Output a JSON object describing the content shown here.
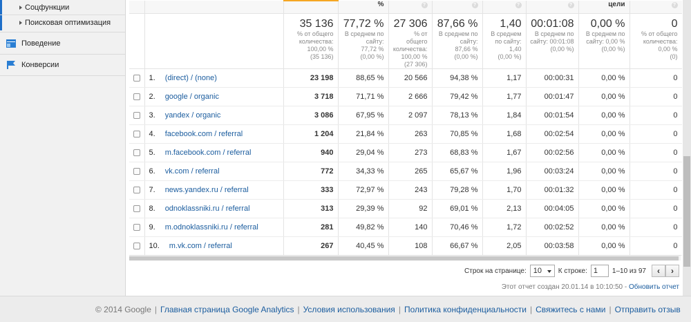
{
  "sidebar": {
    "sub_items": [
      "Соцфункции",
      "Поисковая оптимизация"
    ],
    "nav_items": [
      {
        "label": "Поведение",
        "icon": "behavior-icon"
      },
      {
        "label": "Конверсии",
        "icon": "flag-icon"
      }
    ]
  },
  "table": {
    "header_labels": [
      "",
      "",
      "",
      "%",
      "",
      "",
      "",
      "",
      "цели",
      ""
    ],
    "summary": [
      {
        "value": "35 136",
        "sub1": "% от общего",
        "sub2": "количества:",
        "sub3": "100,00 %",
        "sub4": "(35 136)"
      },
      {
        "value": "77,72 %",
        "sub1": "В среднем по",
        "sub2": "сайту:",
        "sub3": "77,72 %",
        "sub4": "(0,00 %)"
      },
      {
        "value": "27 306",
        "sub1": "% от общего",
        "sub2": "количества:",
        "sub3": "100,00 %",
        "sub4": "(27 306)"
      },
      {
        "value": "87,66 %",
        "sub1": "В среднем по",
        "sub2": "сайту:",
        "sub3": "87,66 %",
        "sub4": "(0,00 %)"
      },
      {
        "value": "1,40",
        "sub1": "В среднем",
        "sub2": "по сайту:",
        "sub3": "1,40",
        "sub4": "(0,00 %)"
      },
      {
        "value": "00:01:08",
        "sub1": "В среднем по",
        "sub2": "сайту: 00:01:08",
        "sub3": "(0,00 %)",
        "sub4": ""
      },
      {
        "value": "0,00 %",
        "sub1": "В среднем по",
        "sub2": "сайту: 0,00 %",
        "sub3": "(0,00 %)",
        "sub4": ""
      },
      {
        "value": "0",
        "sub1": "% от общего",
        "sub2": "количества:",
        "sub3": "0,00 %",
        "sub4": "(0)"
      }
    ],
    "rows": [
      {
        "n": "1.",
        "source": "(direct) / (none)",
        "c1": "23 198",
        "c2": "88,65 %",
        "c3": "20 566",
        "c4": "94,38 %",
        "c5": "1,17",
        "c6": "00:00:31",
        "c7": "0,00 %",
        "c8": "0"
      },
      {
        "n": "2.",
        "source": "google / organic",
        "c1": "3 718",
        "c2": "71,71 %",
        "c3": "2 666",
        "c4": "79,42 %",
        "c5": "1,77",
        "c6": "00:01:47",
        "c7": "0,00 %",
        "c8": "0"
      },
      {
        "n": "3.",
        "source": "yandex / organic",
        "c1": "3 086",
        "c2": "67,95 %",
        "c3": "2 097",
        "c4": "78,13 %",
        "c5": "1,84",
        "c6": "00:01:54",
        "c7": "0,00 %",
        "c8": "0"
      },
      {
        "n": "4.",
        "source": "facebook.com / referral",
        "c1": "1 204",
        "c2": "21,84 %",
        "c3": "263",
        "c4": "70,85 %",
        "c5": "1,68",
        "c6": "00:02:54",
        "c7": "0,00 %",
        "c8": "0"
      },
      {
        "n": "5.",
        "source": "m.facebook.com / referral",
        "c1": "940",
        "c2": "29,04 %",
        "c3": "273",
        "c4": "68,83 %",
        "c5": "1,67",
        "c6": "00:02:56",
        "c7": "0,00 %",
        "c8": "0"
      },
      {
        "n": "6.",
        "source": "vk.com / referral",
        "c1": "772",
        "c2": "34,33 %",
        "c3": "265",
        "c4": "65,67 %",
        "c5": "1,96",
        "c6": "00:03:24",
        "c7": "0,00 %",
        "c8": "0"
      },
      {
        "n": "7.",
        "source": "news.yandex.ru / referral",
        "c1": "333",
        "c2": "72,97 %",
        "c3": "243",
        "c4": "79,28 %",
        "c5": "1,70",
        "c6": "00:01:32",
        "c7": "0,00 %",
        "c8": "0"
      },
      {
        "n": "8.",
        "source": "odnoklassniki.ru / referral",
        "c1": "313",
        "c2": "29,39 %",
        "c3": "92",
        "c4": "69,01 %",
        "c5": "2,13",
        "c6": "00:04:05",
        "c7": "0,00 %",
        "c8": "0"
      },
      {
        "n": "9.",
        "source": "m.odnoklassniki.ru / referral",
        "c1": "281",
        "c2": "49,82 %",
        "c3": "140",
        "c4": "70,46 %",
        "c5": "1,72",
        "c6": "00:02:52",
        "c7": "0,00 %",
        "c8": "0"
      },
      {
        "n": "10.",
        "source": "m.vk.com / referral",
        "c1": "267",
        "c2": "40,45 %",
        "c3": "108",
        "c4": "66,67 %",
        "c5": "2,05",
        "c6": "00:03:58",
        "c7": "0,00 %",
        "c8": "0"
      }
    ]
  },
  "pager": {
    "rows_label": "Строк на странице:",
    "rows_value": "10",
    "goto_label": "К строке:",
    "goto_value": "1",
    "range_label": "1–10 из 97",
    "prev": "‹",
    "next": "›"
  },
  "report_note": {
    "text": "Этот отчет создан 20.01.14 в 10:10:50 - ",
    "refresh_link": "Обновить отчет"
  },
  "footer": {
    "copyright": "© 2014 Google",
    "links": [
      "Главная страница Google Analytics",
      "Условия использования",
      "Политика конфиденциальности",
      "Свяжитесь с нами",
      "Отправить отзыв"
    ]
  },
  "colors": {
    "link": "#1a5c9e",
    "accent_orange": "#f5a623",
    "sidebar_strip": "#1e6ec8"
  }
}
